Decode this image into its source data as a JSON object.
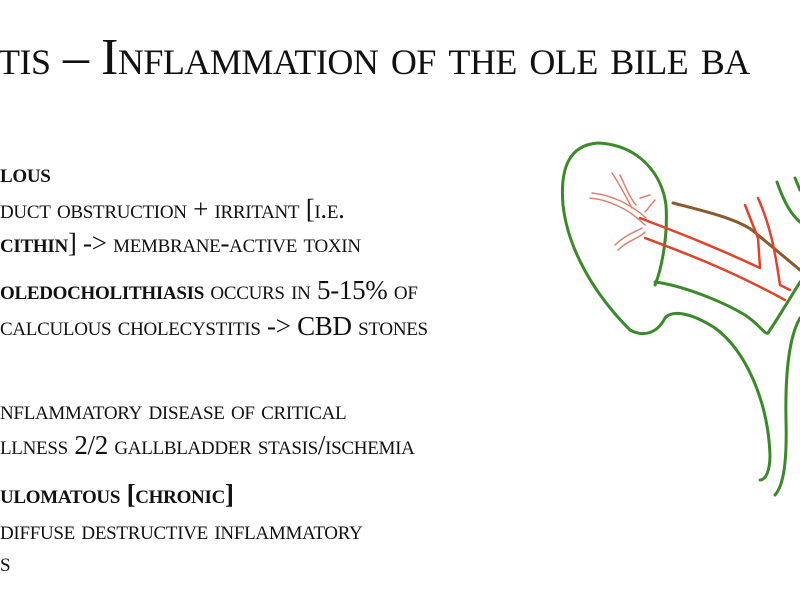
{
  "slide": {
    "title": "tis – Inflammation of the ole bile ba",
    "lines": [
      {
        "bold": "lous",
        "text": ""
      },
      {
        "bold": "",
        "text": "duct obstruction + irritant [i.e."
      },
      {
        "bold": "cithin",
        "text": "] -> membrane-active toxin"
      },
      {
        "bold": "oledocholithiasis",
        "text": " occurs in 5-15% of"
      },
      {
        "bold": "",
        "text": "calculous cholecystitis -> CBD stones"
      },
      {
        "bold": "",
        "text": "nflammatory disease of critical"
      },
      {
        "bold": "",
        "text": "llness 2/2 gallbladder stasis/ischemia"
      },
      {
        "bold": "ulomatous [chronic]",
        "text": ""
      },
      {
        "bold": "",
        "text": "diffuse destructive inflammatory"
      },
      {
        "bold": "",
        "text": "s"
      }
    ]
  },
  "diagram": {
    "colors": {
      "outline": "#3a8a2a",
      "duct": "#e0432a",
      "duct_light": "#e08070",
      "vessel": "#8a5a2a"
    }
  }
}
